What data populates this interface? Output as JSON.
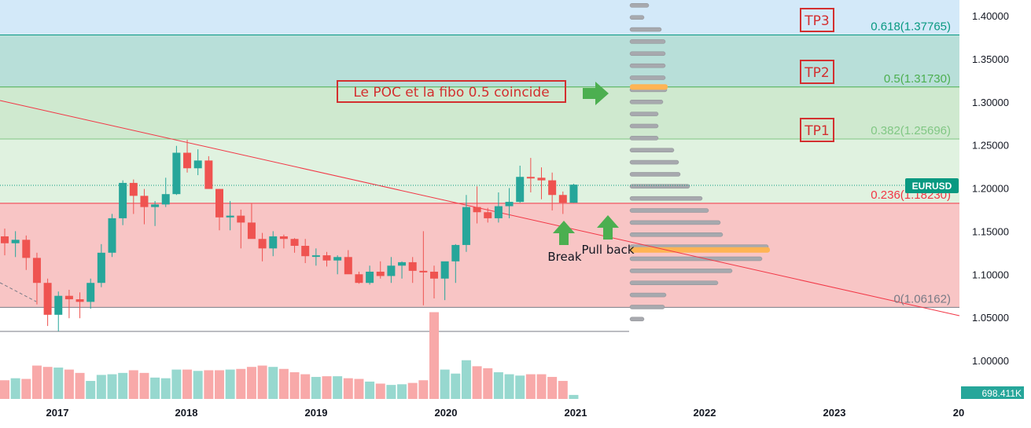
{
  "chart_data": {
    "type": "candlestick",
    "symbol": "EURUSD",
    "timeframe_note": "monthly candles, 2016-2021",
    "last_price": 1.2045,
    "volume_readout": "698.411K",
    "y_axis": {
      "min": 0.955,
      "max": 1.42,
      "ticks": [
        1.0,
        1.05,
        1.1,
        1.15,
        1.2,
        1.25,
        1.3,
        1.35,
        1.4
      ]
    },
    "x_axis": {
      "labels": [
        "2017",
        "2018",
        "2019",
        "2020",
        "2021",
        "2022",
        "2023",
        "20"
      ]
    },
    "fib_levels": [
      {
        "ratio": "0",
        "price": 1.06162,
        "label": "0(1.06162)",
        "color": "#787b86"
      },
      {
        "ratio": "0.236",
        "price": 1.1823,
        "label": "0.236(1.18230)",
        "color": "#f23645"
      },
      {
        "ratio": "0.382",
        "price": 1.25696,
        "label": "0.382(1.25696)",
        "color": "#81c784"
      },
      {
        "ratio": "0.5",
        "price": 1.3173,
        "label": "0.5(1.31730)",
        "color": "#4caf50"
      },
      {
        "ratio": "0.618",
        "price": 1.37765,
        "label": "0.618(1.37765)",
        "color": "#089981"
      }
    ],
    "bands_colors": [
      "#f8c5c5",
      "#e0f2e0",
      "#cfe9cf",
      "#b8dfd9",
      "#d3e9f9"
    ],
    "volume_profile": {
      "rows": [
        {
          "price": 1.412,
          "value": 24
        },
        {
          "price": 1.398,
          "value": 18
        },
        {
          "price": 1.384,
          "value": 40
        },
        {
          "price": 1.37,
          "value": 45
        },
        {
          "price": 1.356,
          "value": 45
        },
        {
          "price": 1.342,
          "value": 45
        },
        {
          "price": 1.328,
          "value": 45
        },
        {
          "price": 1.314,
          "value": 47
        },
        {
          "price": 1.3,
          "value": 42
        },
        {
          "price": 1.286,
          "value": 36
        },
        {
          "price": 1.272,
          "value": 36
        },
        {
          "price": 1.258,
          "value": 36
        },
        {
          "price": 1.244,
          "value": 56
        },
        {
          "price": 1.23,
          "value": 62
        },
        {
          "price": 1.216,
          "value": 64
        },
        {
          "price": 1.202,
          "value": 76
        },
        {
          "price": 1.188,
          "value": 92
        },
        {
          "price": 1.174,
          "value": 100
        },
        {
          "price": 1.16,
          "value": 115
        },
        {
          "price": 1.146,
          "value": 118
        },
        {
          "price": 1.132,
          "value": 176
        },
        {
          "price": 1.118,
          "value": 168
        },
        {
          "price": 1.104,
          "value": 130
        },
        {
          "price": 1.09,
          "value": 112
        },
        {
          "price": 1.076,
          "value": 46
        },
        {
          "price": 1.062,
          "value": 44
        },
        {
          "price": 1.048,
          "value": 18
        }
      ],
      "poc_prices": [
        1.3173,
        1.1283
      ],
      "poc_color": "#ffb454"
    },
    "ohlc": [
      [
        1.144,
        1.153,
        1.122,
        1.136
      ],
      [
        1.136,
        1.15,
        1.12,
        1.14
      ],
      [
        1.14,
        1.145,
        1.105,
        1.119
      ],
      [
        1.119,
        1.125,
        1.065,
        1.09
      ],
      [
        1.09,
        1.095,
        1.04,
        1.053
      ],
      [
        1.053,
        1.08,
        1.034,
        1.075
      ],
      [
        1.075,
        1.082,
        1.049,
        1.071
      ],
      [
        1.071,
        1.079,
        1.049,
        1.068
      ],
      [
        1.068,
        1.095,
        1.06,
        1.09
      ],
      [
        1.09,
        1.135,
        1.085,
        1.125
      ],
      [
        1.125,
        1.17,
        1.12,
        1.165
      ],
      [
        1.165,
        1.209,
        1.157,
        1.206
      ],
      [
        1.206,
        1.21,
        1.17,
        1.191
      ],
      [
        1.191,
        1.199,
        1.158,
        1.178
      ],
      [
        1.178,
        1.185,
        1.156,
        1.181
      ],
      [
        1.181,
        1.212,
        1.178,
        1.193
      ],
      [
        1.193,
        1.249,
        1.192,
        1.241
      ],
      [
        1.241,
        1.256,
        1.218,
        1.223
      ],
      [
        1.223,
        1.245,
        1.215,
        1.232
      ],
      [
        1.232,
        1.237,
        1.2,
        1.199
      ],
      [
        1.199,
        1.199,
        1.151,
        1.166
      ],
      [
        1.166,
        1.185,
        1.151,
        1.168
      ],
      [
        1.168,
        1.175,
        1.13,
        1.16
      ],
      [
        1.16,
        1.182,
        1.143,
        1.141
      ],
      [
        1.141,
        1.148,
        1.115,
        1.13
      ],
      [
        1.13,
        1.15,
        1.121,
        1.144
      ],
      [
        1.144,
        1.146,
        1.13,
        1.141
      ],
      [
        1.141,
        1.142,
        1.125,
        1.133
      ],
      [
        1.133,
        1.141,
        1.113,
        1.121
      ],
      [
        1.121,
        1.13,
        1.11,
        1.122
      ],
      [
        1.122,
        1.126,
        1.109,
        1.116
      ],
      [
        1.116,
        1.122,
        1.1,
        1.12
      ],
      [
        1.12,
        1.128,
        1.103,
        1.1
      ],
      [
        1.1,
        1.103,
        1.089,
        1.09
      ],
      [
        1.09,
        1.11,
        1.088,
        1.103
      ],
      [
        1.103,
        1.115,
        1.095,
        1.098
      ],
      [
        1.098,
        1.12,
        1.09,
        1.11
      ],
      [
        1.11,
        1.115,
        1.095,
        1.114
      ],
      [
        1.114,
        1.12,
        1.09,
        1.104
      ],
      [
        1.104,
        1.15,
        1.064,
        1.103
      ],
      [
        1.103,
        1.11,
        1.072,
        1.095
      ],
      [
        1.095,
        1.112,
        1.07,
        1.115
      ],
      [
        1.115,
        1.135,
        1.09,
        1.134
      ],
      [
        1.134,
        1.192,
        1.126,
        1.178
      ],
      [
        1.178,
        1.202,
        1.159,
        1.172
      ],
      [
        1.172,
        1.177,
        1.16,
        1.165
      ],
      [
        1.165,
        1.195,
        1.16,
        1.179
      ],
      [
        1.179,
        1.2,
        1.165,
        1.184
      ],
      [
        1.184,
        1.226,
        1.183,
        1.213
      ],
      [
        1.213,
        1.235,
        1.195,
        1.212
      ],
      [
        1.212,
        1.224,
        1.187,
        1.209
      ],
      [
        1.209,
        1.218,
        1.174,
        1.192
      ],
      [
        1.192,
        1.196,
        1.17,
        1.183
      ],
      [
        1.183,
        1.205,
        1.183,
        1.204
      ]
    ],
    "volumes": [
      28,
      31,
      30,
      50,
      48,
      47,
      44,
      39,
      27,
      36,
      37,
      39,
      43,
      39,
      32,
      31,
      44,
      44,
      42,
      43,
      43,
      44,
      45,
      48,
      50,
      48,
      45,
      40,
      37,
      33,
      34,
      34,
      31,
      30,
      26,
      23,
      21,
      22,
      24,
      28,
      130,
      44,
      38,
      58,
      49,
      46,
      40,
      37,
      35,
      37,
      37,
      33,
      27,
      6
    ]
  },
  "annotations": {
    "poc_note": "Le POC et la fibo 0.5 coincide",
    "tp1": "TP1",
    "tp2": "TP2",
    "tp3": "TP3",
    "break_label": "Break",
    "pullback_label": "Pull back"
  }
}
